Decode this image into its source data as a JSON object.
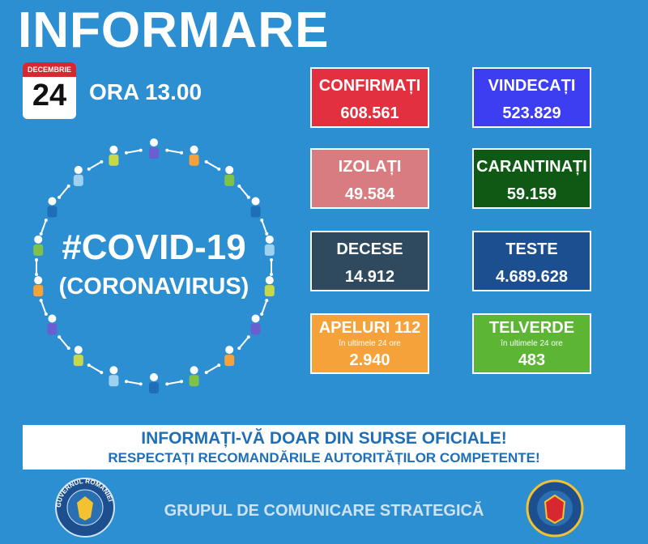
{
  "header": {
    "title": "INFORMARE",
    "calendar_month": "DECEMBRIE",
    "calendar_day": "24",
    "time": "ORA 13.00"
  },
  "hashtag": {
    "title": "#COVID-19",
    "subtitle": "(CORONAVIRUS)"
  },
  "stats": [
    {
      "label": "CONFIRMAȚI",
      "value": "608.561"
    },
    {
      "label": "VINDECAȚI",
      "value": "523.829"
    },
    {
      "label": "IZOLAȚI",
      "value": "49.584"
    },
    {
      "label": "CARANTINAȚI",
      "value": "59.159"
    },
    {
      "label": "DECESE",
      "value": "14.912"
    },
    {
      "label": "TESTE",
      "value": "4.689.628"
    },
    {
      "label": "APELURI 112",
      "note": "în ultimele 24 ore",
      "value": "2.940"
    },
    {
      "label": "TELVERDE",
      "note": "în ultimele 24 ore",
      "value": "483"
    }
  ],
  "banner": {
    "line1": "INFORMAȚI-VĂ DOAR DIN SURSE OFICIALE!",
    "line2": "RESPECTAȚI RECOMANDĂRILE AUTORITĂȚILOR COMPETENTE!"
  },
  "footer": {
    "logo_text": "GUVERNUL ROMÂNIEI",
    "text": "GRUPUL DE COMUNICARE STRATEGICĂ"
  }
}
